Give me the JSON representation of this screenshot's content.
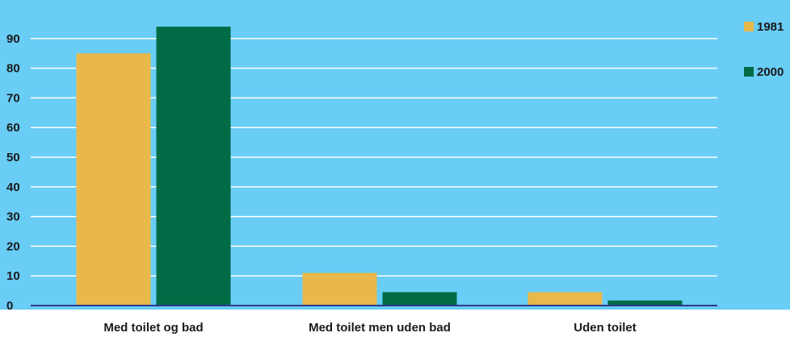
{
  "chart_data": {
    "type": "bar",
    "categories": [
      "Med toilet og bad",
      "Med toilet men uden bad",
      "Uden toilet"
    ],
    "series": [
      {
        "name": "1981",
        "values": [
          85,
          11,
          4.5
        ],
        "color": "#e9b84a"
      },
      {
        "name": "2000",
        "values": [
          94,
          4.5,
          1.7
        ],
        "color": "#006b45"
      }
    ],
    "yticks": [
      0,
      10,
      20,
      30,
      40,
      50,
      60,
      70,
      80,
      90
    ],
    "ylim": [
      0,
      100
    ],
    "grid": true,
    "legend": "right",
    "title": "",
    "xlabel": "",
    "ylabel": ""
  },
  "colors": {
    "plot_background": "#69cdf5",
    "page_background": "#ffffff",
    "gridline": "#ffffff",
    "axis": "#2d3a8c"
  }
}
